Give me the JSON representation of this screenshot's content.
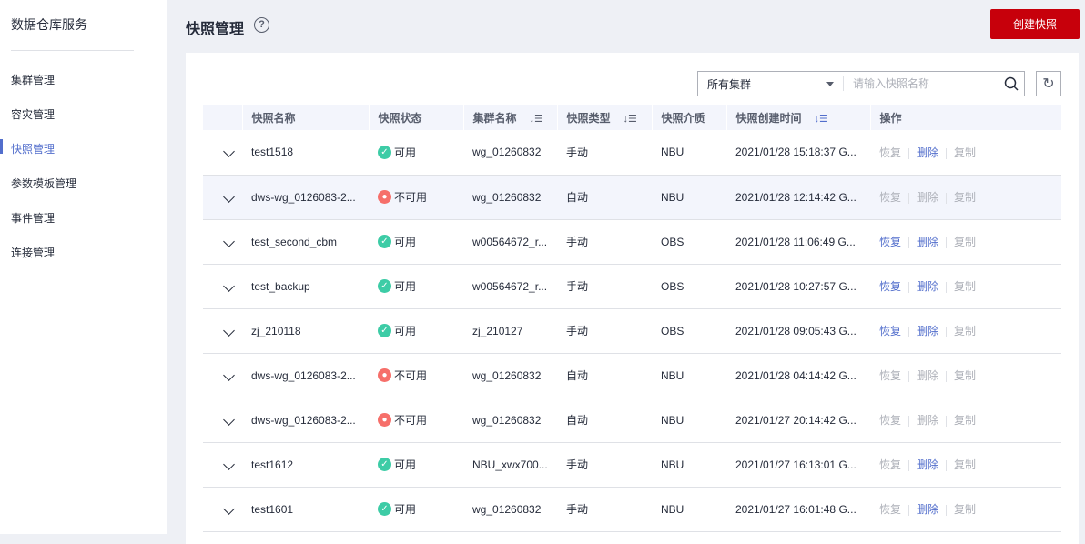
{
  "sidebar": {
    "title": "数据仓库服务",
    "items": [
      {
        "label": "集群管理"
      },
      {
        "label": "容灾管理"
      },
      {
        "label": "快照管理",
        "active": true
      },
      {
        "label": "参数模板管理"
      },
      {
        "label": "事件管理"
      },
      {
        "label": "连接管理"
      }
    ]
  },
  "header": {
    "title": "快照管理",
    "help_icon": "question-circle-icon",
    "create_label": "创建快照",
    "accent": "#c7000b"
  },
  "filter": {
    "cluster_select": "所有集群",
    "search_placeholder": "请输入快照名称"
  },
  "table": {
    "columns": [
      "快照名称",
      "快照状态",
      "集群名称",
      "快照类型",
      "快照介质",
      "快照创建时间",
      "操作"
    ],
    "ops": [
      "恢复",
      "删除",
      "复制"
    ],
    "rows": [
      {
        "name": "test1518",
        "status": "可用",
        "ok": true,
        "cluster": "wg_01260832",
        "type": "手动",
        "media": "NBU",
        "time": "2021/01/28 15:18:37 G...",
        "en": [
          false,
          true,
          false
        ]
      },
      {
        "name": "dws-wg_0126083-2...",
        "status": "不可用",
        "ok": false,
        "cluster": "wg_01260832",
        "type": "自动",
        "media": "NBU",
        "time": "2021/01/28 12:14:42 G...",
        "en": [
          false,
          false,
          false
        ],
        "hl": true
      },
      {
        "name": "test_second_cbm",
        "status": "可用",
        "ok": true,
        "cluster": "w00564672_r...",
        "type": "手动",
        "media": "OBS",
        "time": "2021/01/28 11:06:49 G...",
        "en": [
          true,
          true,
          false
        ]
      },
      {
        "name": "test_backup",
        "status": "可用",
        "ok": true,
        "cluster": "w00564672_r...",
        "type": "手动",
        "media": "OBS",
        "time": "2021/01/28 10:27:57 G...",
        "en": [
          true,
          true,
          false
        ]
      },
      {
        "name": "zj_210118",
        "status": "可用",
        "ok": true,
        "cluster": "zj_210127",
        "type": "手动",
        "media": "OBS",
        "time": "2021/01/28 09:05:43 G...",
        "en": [
          true,
          true,
          false
        ]
      },
      {
        "name": "dws-wg_0126083-2...",
        "status": "不可用",
        "ok": false,
        "cluster": "wg_01260832",
        "type": "自动",
        "media": "NBU",
        "time": "2021/01/28 04:14:42 G...",
        "en": [
          false,
          false,
          false
        ]
      },
      {
        "name": "dws-wg_0126083-2...",
        "status": "不可用",
        "ok": false,
        "cluster": "wg_01260832",
        "type": "自动",
        "media": "NBU",
        "time": "2021/01/27 20:14:42 G...",
        "en": [
          false,
          false,
          false
        ]
      },
      {
        "name": "test1612",
        "status": "可用",
        "ok": true,
        "cluster": "NBU_xwx700...",
        "type": "手动",
        "media": "NBU",
        "time": "2021/01/27 16:13:01 G...",
        "en": [
          false,
          true,
          false
        ]
      },
      {
        "name": "test1601",
        "status": "可用",
        "ok": true,
        "cluster": "wg_01260832",
        "type": "手动",
        "media": "NBU",
        "time": "2021/01/27 16:01:48 G...",
        "en": [
          false,
          true,
          false
        ]
      }
    ]
  }
}
